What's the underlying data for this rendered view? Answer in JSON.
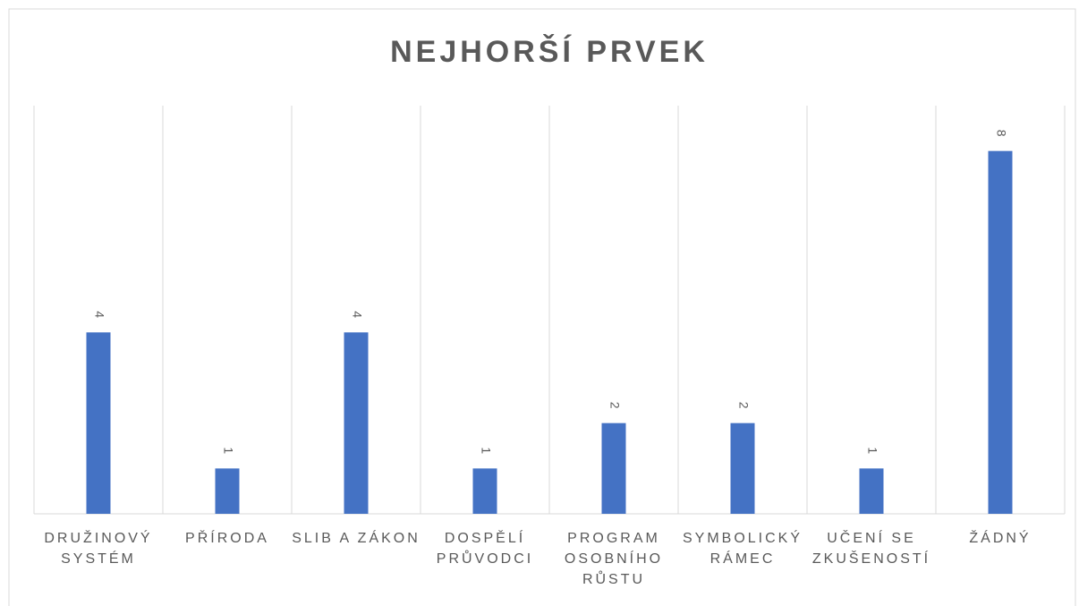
{
  "chart_data": {
    "type": "bar",
    "title": "NEJHORŠÍ PRVEK",
    "categories": [
      "DRUŽINOVÝ SYSTÉM",
      "PŘÍRODA",
      "SLIB A ZÁKON",
      "DOSPĚLÍ PRŮVODCI",
      "PROGRAM OSOBNÍHO RŮSTU",
      "SYMBOLICKÝ RÁMEC",
      "UČENÍ SE ZKUŠENOSTÍ",
      "ŽÁDNÝ"
    ],
    "values": [
      4,
      1,
      4,
      1,
      2,
      2,
      1,
      8
    ],
    "color": "#4472c4",
    "ylim": [
      0,
      9
    ]
  }
}
